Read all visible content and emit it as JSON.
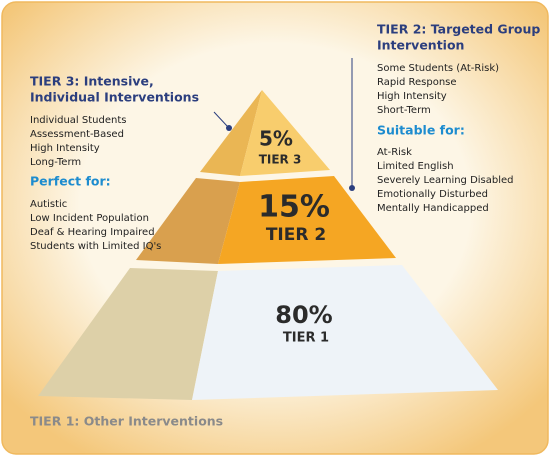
{
  "tier3": {
    "heading": [
      "TIER 3: Intensive,",
      "Individual Interventions"
    ],
    "items": [
      "Individual Students",
      "Assessment-Based",
      "High Intensity",
      "Long-Term"
    ],
    "subheading": "Perfect for:",
    "sub_items": [
      "Autistic",
      "Low Incident Population",
      "Deaf & Hearing Impaired",
      "Students with Limited IQ's"
    ],
    "percent": "5%",
    "label": "TIER 3"
  },
  "tier2": {
    "heading": [
      "TIER 2: Targeted Group",
      "Intervention"
    ],
    "items": [
      "Some Students (At-Risk)",
      "Rapid Response",
      "High Intensity",
      "Short-Term"
    ],
    "subheading": "Suitable for:",
    "sub_items": [
      "At-Risk",
      "Limited English",
      "Severely Learning Disabled",
      "Emotionally Disturbed",
      "Mentally Handicapped"
    ],
    "percent": "15%",
    "label": "TIER 2"
  },
  "tier1": {
    "percent": "80%",
    "label": "TIER 1",
    "caption": "TIER 1: Other Interventions"
  }
}
